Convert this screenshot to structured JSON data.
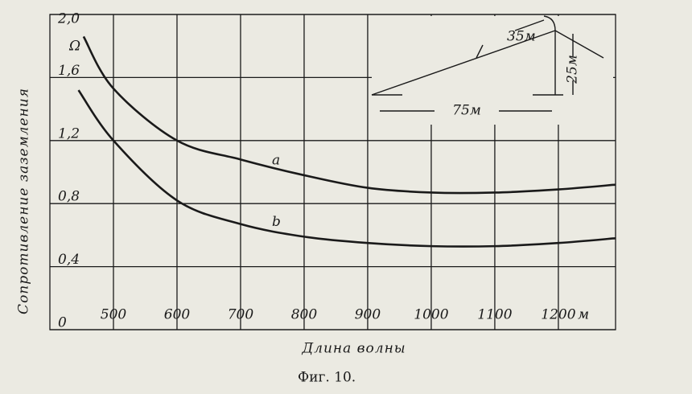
{
  "chart_data": {
    "type": "line",
    "caption": "Фиг. 10.",
    "x_label": "Длина волны",
    "y_label": "Сопротивление заземления",
    "x_unit": "м",
    "y_unit": "Ω",
    "xlim": [
      400,
      1290
    ],
    "ylim": [
      0,
      2.0
    ],
    "xticks": [
      500,
      600,
      700,
      800,
      900,
      1000,
      1100,
      1200
    ],
    "yticks": [
      0,
      {
        "value": 0.4,
        "label": "0,4"
      },
      {
        "value": 0.8,
        "label": "0,8"
      },
      {
        "value": 1.2,
        "label": "1,2"
      },
      {
        "value": 1.6,
        "label": "1,6"
      },
      {
        "value": 2.0,
        "label": "2,0"
      }
    ],
    "grid": true,
    "series": [
      {
        "name": "a",
        "color": "#1a1a1a",
        "x": [
          453,
          500,
          600,
          700,
          800,
          900,
          1000,
          1100,
          1200,
          1290
        ],
        "values": [
          1.86,
          1.53,
          1.2,
          1.08,
          0.98,
          0.9,
          0.87,
          0.87,
          0.89,
          0.92
        ]
      },
      {
        "name": "b",
        "color": "#1a1a1a",
        "x": [
          445,
          500,
          600,
          700,
          800,
          900,
          1000,
          1100,
          1200,
          1290
        ],
        "values": [
          1.52,
          1.2,
          0.82,
          0.67,
          0.59,
          0.55,
          0.53,
          0.53,
          0.55,
          0.58
        ]
      }
    ],
    "annotations": [
      "35м",
      "25м",
      "75м"
    ]
  }
}
